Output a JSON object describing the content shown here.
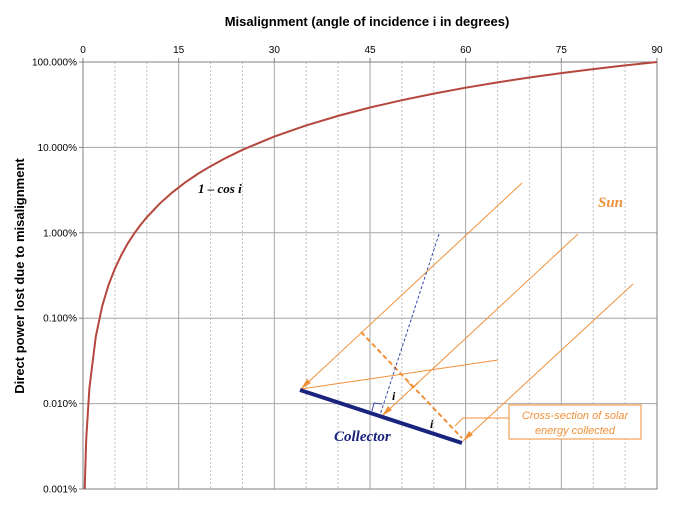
{
  "chart_data": {
    "type": "line",
    "xlabel": "Misalignment  (angle of incidence  i  in degrees)",
    "ylabel": "Direct power lost due to misalignment",
    "xlim": [
      0,
      90
    ],
    "ylim": [
      0.001,
      100
    ],
    "y_scale": "log",
    "x_axis_position": "top",
    "x_ticks": [
      0,
      15,
      30,
      45,
      60,
      75,
      90
    ],
    "x_tick_labels": [
      "0",
      "15",
      "30",
      "45",
      "60",
      "75",
      "90"
    ],
    "y_ticks": [
      0.001,
      0.01,
      0.1,
      1,
      10,
      100
    ],
    "y_tick_labels": [
      "0.001%",
      "0.010%",
      "0.100%",
      "1.000%",
      "10.000%",
      "100.000%"
    ],
    "grid": "on",
    "series": [
      {
        "name": "1 – cos i",
        "color": "#b5473e",
        "x": [
          0.26,
          0.5,
          1,
          2,
          3,
          4,
          5,
          6,
          7,
          8,
          9,
          10,
          12,
          14,
          16,
          18,
          20,
          22,
          25,
          30,
          35,
          40,
          45,
          50,
          55,
          60,
          65,
          70,
          75,
          80,
          85,
          90
        ],
        "y": [
          0.001,
          0.0038,
          0.0152,
          0.0609,
          0.137,
          0.244,
          0.381,
          0.548,
          0.745,
          0.973,
          1.231,
          1.519,
          2.185,
          2.97,
          3.874,
          4.894,
          6.031,
          7.282,
          9.369,
          13.397,
          18.085,
          23.396,
          29.289,
          35.721,
          42.642,
          50.0,
          57.738,
          65.798,
          74.118,
          82.635,
          91.284,
          100.0
        ]
      }
    ],
    "annotations": {
      "curve_label": "1 – cos i",
      "sun_label": "Sun",
      "collector_label": "Collector",
      "angle_label_1": "i",
      "angle_label_2": "i",
      "callout_line1": "Cross-section of solar",
      "callout_line2": "energy collected"
    }
  },
  "colors": {
    "curve": "#b5473e",
    "sun_rays": "#f0913a",
    "collector": "#1a237e",
    "normal_line": "#3949ab",
    "grid_major": "#a6a6a6",
    "grid_minor": "#bfbfbf"
  }
}
